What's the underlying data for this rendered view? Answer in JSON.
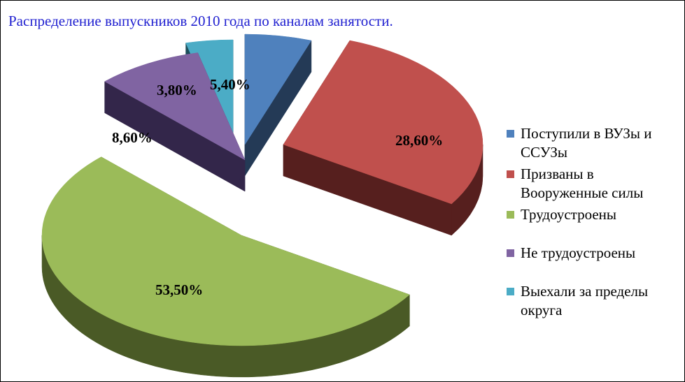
{
  "chart_data": {
    "type": "pie",
    "title": "Распределение выпускников 2010 года по каналам занятости.",
    "legend_position": "right",
    "exploded": true,
    "three_d": true,
    "slices": [
      {
        "name": "Поступили в ВУЗы и ССУЗы",
        "value": 5.4,
        "label": "5,40%",
        "color": "#4f81bd",
        "side": "#243a56"
      },
      {
        "name": "Призваны в Вооруженные силы",
        "value": 28.6,
        "label": "28,60%",
        "color": "#c0504d",
        "side": "#561f1e"
      },
      {
        "name": "Трудоустроены",
        "value": 53.5,
        "label": "53,50%",
        "color": "#9bbb59",
        "side": "#4a5a26"
      },
      {
        "name": "Не трудоустроены",
        "value": 8.6,
        "label": "8,60%",
        "color": "#8064a2",
        "side": "#33264a"
      },
      {
        "name": "Выехали за пределы округа",
        "value": 3.8,
        "label": "3,80%",
        "color": "#4bacc6",
        "side": "#1d4e5a"
      }
    ]
  }
}
